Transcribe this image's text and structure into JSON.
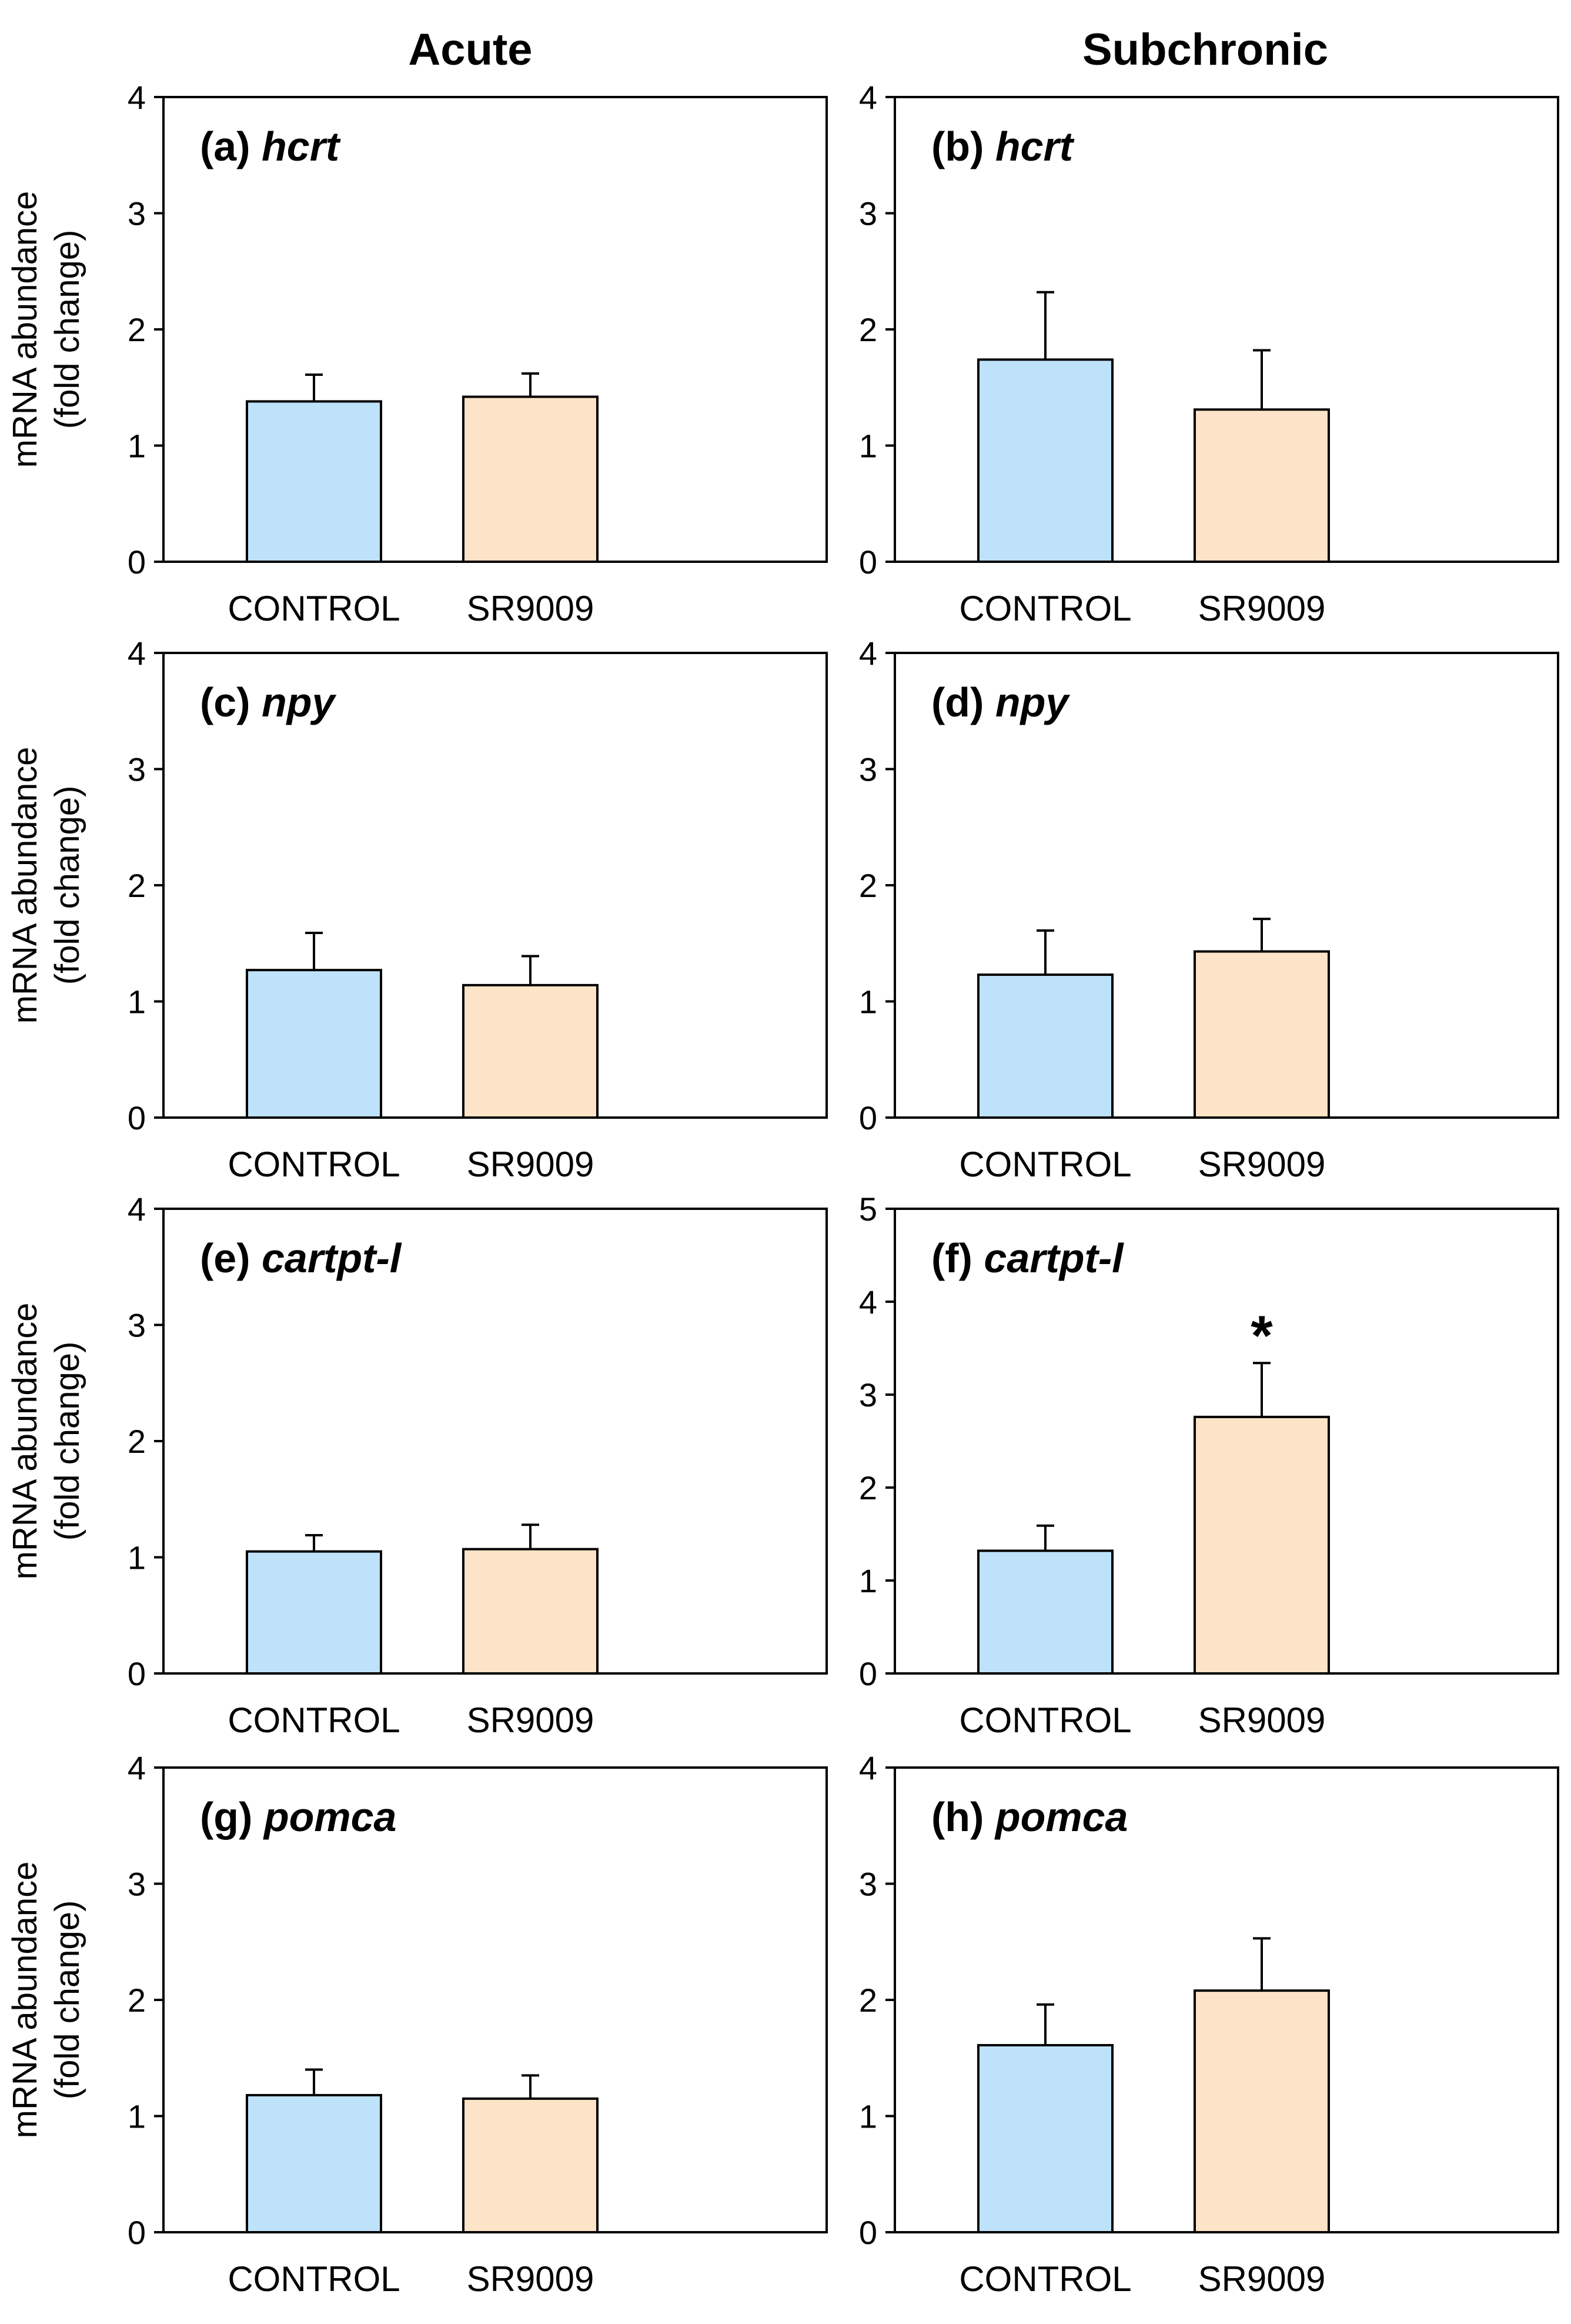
{
  "column_titles": [
    "Acute",
    "Subchronic"
  ],
  "chart_data": [
    {
      "type": "bar",
      "label": "(a)",
      "gene": "hcrt",
      "categories": [
        "CONTROL",
        "SR9009"
      ],
      "values": [
        1.38,
        1.42
      ],
      "errors": [
        0.23,
        0.2
      ],
      "ylim": [
        0,
        4
      ],
      "yticks": [
        "0",
        "1",
        "2",
        "3",
        "4"
      ],
      "ylabel": [
        "mRNA abundance",
        "(fold change)"
      ],
      "significance": [
        "",
        ""
      ]
    },
    {
      "type": "bar",
      "label": "(b)",
      "gene": "hcrt",
      "categories": [
        "CONTROL",
        "SR9009"
      ],
      "values": [
        1.74,
        1.31
      ],
      "errors": [
        0.58,
        0.51
      ],
      "ylim": [
        0,
        4
      ],
      "yticks": [
        "0",
        "1",
        "2",
        "3",
        "4"
      ],
      "ylabel": null,
      "significance": [
        "",
        ""
      ]
    },
    {
      "type": "bar",
      "label": "(c)",
      "gene": "npy",
      "categories": [
        "CONTROL",
        "SR9009"
      ],
      "values": [
        1.27,
        1.14
      ],
      "errors": [
        0.32,
        0.25
      ],
      "ylim": [
        0,
        4
      ],
      "yticks": [
        "0",
        "1",
        "2",
        "3",
        "4"
      ],
      "ylabel": [
        "mRNA abundance",
        "(fold change)"
      ],
      "significance": [
        "",
        ""
      ]
    },
    {
      "type": "bar",
      "label": "(d)",
      "gene": "npy",
      "categories": [
        "CONTROL",
        "SR9009"
      ],
      "values": [
        1.23,
        1.43
      ],
      "errors": [
        0.38,
        0.28
      ],
      "ylim": [
        0,
        4
      ],
      "yticks": [
        "0",
        "1",
        "2",
        "3",
        "4"
      ],
      "ylabel": null,
      "significance": [
        "",
        ""
      ]
    },
    {
      "type": "bar",
      "label": "(e)",
      "gene": "cartpt-l",
      "categories": [
        "CONTROL",
        "SR9009"
      ],
      "values": [
        1.05,
        1.07
      ],
      "errors": [
        0.14,
        0.21
      ],
      "ylim": [
        0,
        4
      ],
      "yticks": [
        "0",
        "1",
        "2",
        "3",
        "4"
      ],
      "ylabel": [
        "mRNA abundance",
        "(fold change)"
      ],
      "significance": [
        "",
        ""
      ]
    },
    {
      "type": "bar",
      "label": "(f)",
      "gene": "cartpt-l",
      "categories": [
        "CONTROL",
        "SR9009"
      ],
      "values": [
        1.32,
        2.76
      ],
      "errors": [
        0.27,
        0.58
      ],
      "ylim": [
        0,
        5
      ],
      "yticks": [
        "0",
        "1",
        "2",
        "3",
        "4",
        "5"
      ],
      "ylabel": null,
      "significance": [
        "",
        "*"
      ]
    },
    {
      "type": "bar",
      "label": "(g)",
      "gene": "pomca",
      "categories": [
        "CONTROL",
        "SR9009"
      ],
      "values": [
        1.18,
        1.15
      ],
      "errors": [
        0.22,
        0.2
      ],
      "ylim": [
        0,
        4
      ],
      "yticks": [
        "0",
        "1",
        "2",
        "3",
        "4"
      ],
      "ylabel": [
        "mRNA abundance",
        "(fold change)"
      ],
      "significance": [
        "",
        ""
      ]
    },
    {
      "type": "bar",
      "label": "(h)",
      "gene": "pomca",
      "categories": [
        "CONTROL",
        "SR9009"
      ],
      "values": [
        1.61,
        2.08
      ],
      "errors": [
        0.35,
        0.45
      ],
      "ylim": [
        0,
        4
      ],
      "yticks": [
        "0",
        "1",
        "2",
        "3",
        "4"
      ],
      "ylabel": null,
      "significance": [
        "",
        ""
      ]
    }
  ],
  "colors": {
    "control": "#bfe2fb",
    "treatment": "#fde3c7",
    "stroke": "#000000"
  }
}
